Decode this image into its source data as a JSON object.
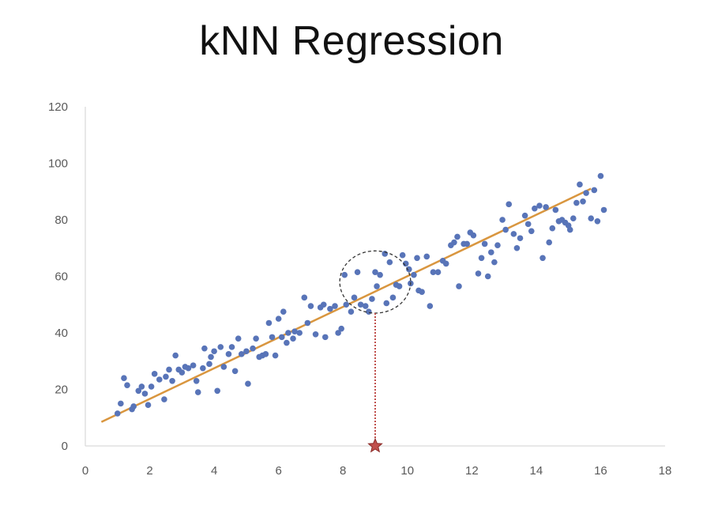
{
  "title": "kNN Regression",
  "colors": {
    "points": "#5874b8",
    "fit_line": "#d9963f",
    "axis": "#d9d9d9",
    "neighborhood": "#333333",
    "query_marker": "#c0504d",
    "query_line": "#c0504d"
  },
  "chart_data": {
    "type": "scatter",
    "title": "kNN Regression",
    "xlabel": "",
    "ylabel": "",
    "xlim": [
      0,
      18
    ],
    "ylim": [
      0,
      120
    ],
    "xticks": [
      0,
      2,
      4,
      6,
      8,
      10,
      12,
      14,
      16,
      18
    ],
    "yticks": [
      0,
      20,
      40,
      60,
      80,
      100,
      120
    ],
    "grid": false,
    "legend": "none",
    "points": [
      [
        1.0,
        11.5
      ],
      [
        1.1,
        15
      ],
      [
        1.2,
        24
      ],
      [
        1.3,
        21.5
      ],
      [
        1.45,
        13
      ],
      [
        1.5,
        14
      ],
      [
        1.65,
        19.5
      ],
      [
        1.75,
        21
      ],
      [
        1.85,
        18.5
      ],
      [
        1.95,
        14.5
      ],
      [
        2.05,
        21
      ],
      [
        2.15,
        25.5
      ],
      [
        2.3,
        23.5
      ],
      [
        2.45,
        16.5
      ],
      [
        2.5,
        24.5
      ],
      [
        2.6,
        27
      ],
      [
        2.7,
        23
      ],
      [
        2.8,
        32
      ],
      [
        2.9,
        27
      ],
      [
        3.0,
        26
      ],
      [
        3.1,
        28
      ],
      [
        3.2,
        27.5
      ],
      [
        3.35,
        28.5
      ],
      [
        3.45,
        23
      ],
      [
        3.5,
        19
      ],
      [
        3.65,
        27.5
      ],
      [
        3.7,
        34.5
      ],
      [
        3.85,
        29
      ],
      [
        3.9,
        31.5
      ],
      [
        4.0,
        33.5
      ],
      [
        4.1,
        19.5
      ],
      [
        4.2,
        35
      ],
      [
        4.3,
        28
      ],
      [
        4.45,
        32.5
      ],
      [
        4.55,
        35
      ],
      [
        4.65,
        26.5
      ],
      [
        4.75,
        38
      ],
      [
        4.85,
        32.5
      ],
      [
        5.0,
        33.5
      ],
      [
        5.05,
        22
      ],
      [
        5.2,
        34.5
      ],
      [
        5.3,
        38
      ],
      [
        5.4,
        31.5
      ],
      [
        5.5,
        32
      ],
      [
        5.6,
        32.5
      ],
      [
        5.7,
        43.5
      ],
      [
        5.8,
        38.5
      ],
      [
        5.9,
        32
      ],
      [
        6.0,
        45
      ],
      [
        6.1,
        38.5
      ],
      [
        6.15,
        47.5
      ],
      [
        6.25,
        36.5
      ],
      [
        6.3,
        40
      ],
      [
        6.45,
        38
      ],
      [
        6.5,
        40.5
      ],
      [
        6.65,
        40
      ],
      [
        6.8,
        52.5
      ],
      [
        6.9,
        43.5
      ],
      [
        7.0,
        49.5
      ],
      [
        7.15,
        39.5
      ],
      [
        7.3,
        49
      ],
      [
        7.4,
        50
      ],
      [
        7.45,
        38.5
      ],
      [
        7.6,
        48.5
      ],
      [
        7.75,
        49.5
      ],
      [
        7.85,
        40
      ],
      [
        7.95,
        41.5
      ],
      [
        8.05,
        60.5
      ],
      [
        8.1,
        50
      ],
      [
        8.25,
        47.5
      ],
      [
        8.35,
        52.5
      ],
      [
        8.45,
        61.5
      ],
      [
        8.55,
        50
      ],
      [
        8.7,
        49.5
      ],
      [
        8.8,
        47.5
      ],
      [
        8.9,
        52
      ],
      [
        9.0,
        61.5
      ],
      [
        9.05,
        56.5
      ],
      [
        9.15,
        60.5
      ],
      [
        9.3,
        68
      ],
      [
        9.35,
        50.5
      ],
      [
        9.45,
        65
      ],
      [
        9.55,
        52.5
      ],
      [
        9.65,
        57
      ],
      [
        9.75,
        56.5
      ],
      [
        9.85,
        67.5
      ],
      [
        9.95,
        64.5
      ],
      [
        10.05,
        62.5
      ],
      [
        10.1,
        57.5
      ],
      [
        10.2,
        60.5
      ],
      [
        10.3,
        66.5
      ],
      [
        10.35,
        55
      ],
      [
        10.45,
        54.5
      ],
      [
        10.6,
        67
      ],
      [
        10.7,
        49.5
      ],
      [
        10.8,
        61.5
      ],
      [
        10.95,
        61.5
      ],
      [
        11.1,
        65.5
      ],
      [
        11.2,
        64.5
      ],
      [
        11.35,
        71
      ],
      [
        11.45,
        72
      ],
      [
        11.55,
        74
      ],
      [
        11.6,
        56.5
      ],
      [
        11.75,
        71.5
      ],
      [
        11.85,
        71.5
      ],
      [
        11.95,
        75.5
      ],
      [
        12.05,
        74.5
      ],
      [
        12.2,
        61
      ],
      [
        12.3,
        66.5
      ],
      [
        12.4,
        71.5
      ],
      [
        12.5,
        60
      ],
      [
        12.6,
        68.5
      ],
      [
        12.7,
        65
      ],
      [
        12.8,
        71
      ],
      [
        12.95,
        80
      ],
      [
        13.05,
        76.5
      ],
      [
        13.15,
        85.5
      ],
      [
        13.3,
        75
      ],
      [
        13.4,
        70
      ],
      [
        13.5,
        73.5
      ],
      [
        13.65,
        81.5
      ],
      [
        13.75,
        78.5
      ],
      [
        13.85,
        76
      ],
      [
        13.95,
        84
      ],
      [
        14.1,
        85
      ],
      [
        14.2,
        66.5
      ],
      [
        14.3,
        84.5
      ],
      [
        14.4,
        72
      ],
      [
        14.5,
        77
      ],
      [
        14.6,
        83.5
      ],
      [
        14.7,
        79.5
      ],
      [
        14.8,
        80
      ],
      [
        14.9,
        79
      ],
      [
        15.0,
        78
      ],
      [
        15.05,
        76.5
      ],
      [
        15.15,
        80.5
      ],
      [
        15.25,
        86
      ],
      [
        15.35,
        92.5
      ],
      [
        15.45,
        86.5
      ],
      [
        15.55,
        89.5
      ],
      [
        15.7,
        80.5
      ],
      [
        15.8,
        90.5
      ],
      [
        15.9,
        79.5
      ],
      [
        16.0,
        95.5
      ],
      [
        16.1,
        83.5
      ]
    ],
    "fit_line": {
      "from": [
        0.5,
        8.5
      ],
      "to": [
        15.7,
        91
      ]
    },
    "query_x": 9.0,
    "neighborhood": {
      "center": [
        9.0,
        58
      ],
      "radius_x": 1.1,
      "radius_y": 11
    }
  }
}
